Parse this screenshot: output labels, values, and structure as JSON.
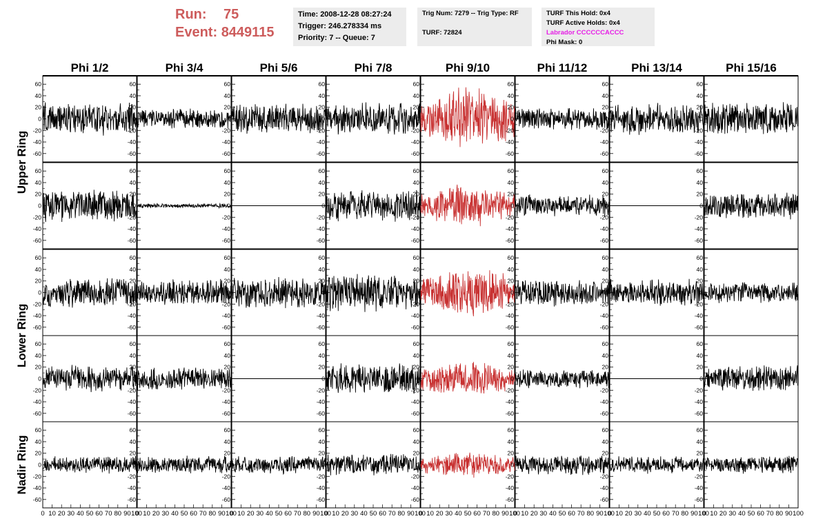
{
  "header": {
    "run_label": "Run:",
    "run_value": "75",
    "event_label": "Event:",
    "event_value": "8449115",
    "time_line": "Time: 2008-12-28 08:27:24",
    "trigger_line": "Trigger: 246.278334 ms",
    "priority_line": "Priority: 7 -- Queue: 7",
    "trig_num_line": "Trig Num: 7279 -- Trig Type: RF",
    "turf_line": "TURF: 72824",
    "turf_hold_line": "TURF This Hold: 0x4",
    "turf_active_line": "TURF Active Holds: 0x4",
    "labrador_line": "Labrador CCCCCCACCC",
    "phi_mask_line": "Phi Mask: 0",
    "labrador_color": "#e61ee6",
    "run_event_color": "#cd5c5c"
  },
  "chart_data": {
    "type": "line",
    "title": "",
    "columns": [
      "Phi 1/2",
      "Phi 3/4",
      "Phi 5/6",
      "Phi 7/8",
      "Phi 9/10",
      "Phi 11/12",
      "Phi 13/14",
      "Phi 15/16"
    ],
    "rows": [
      {
        "id": "upper-1",
        "group": "Upper Ring"
      },
      {
        "id": "upper-2",
        "group": "Upper Ring"
      },
      {
        "id": "lower-1",
        "group": "Lower Ring"
      },
      {
        "id": "lower-2",
        "group": "Lower Ring"
      },
      {
        "id": "nadir",
        "group": "Nadir Ring"
      }
    ],
    "row_labels": [
      {
        "label": "Upper Ring",
        "rows": [
          0,
          1
        ]
      },
      {
        "label": "Lower Ring",
        "rows": [
          2,
          3
        ]
      },
      {
        "label": "Nadir Ring",
        "rows": [
          4
        ]
      }
    ],
    "xlim": [
      0,
      100
    ],
    "ylim": [
      -65,
      65
    ],
    "x_tick_values": [
      0,
      10,
      20,
      30,
      40,
      50,
      60,
      70,
      80,
      90,
      100
    ],
    "x_tick_labels": [
      "0",
      "10",
      "20",
      "30",
      "40",
      "50",
      "60",
      "70",
      "80",
      "90",
      "100"
    ],
    "y_ticks": [
      "60",
      "40",
      "20",
      "0",
      "-20",
      "-40",
      "-60"
    ],
    "y_tick_values": [
      60,
      40,
      20,
      0,
      -20,
      -40,
      -60
    ],
    "highlight_column": 4,
    "highlight_color": "#c83232",
    "trace_color": "#000000",
    "amplitude_note": "approximate peak-to-peak envelope per trace in mV-like units",
    "amplitudes": [
      [
        22,
        14,
        20,
        22,
        40,
        15,
        22,
        22
      ],
      [
        22,
        3,
        0,
        22,
        26,
        15,
        0,
        18
      ],
      [
        20,
        18,
        22,
        26,
        32,
        18,
        18,
        14
      ],
      [
        18,
        16,
        0,
        20,
        22,
        13,
        0,
        18
      ],
      [
        12,
        12,
        12,
        14,
        16,
        14,
        12,
        12
      ]
    ]
  }
}
